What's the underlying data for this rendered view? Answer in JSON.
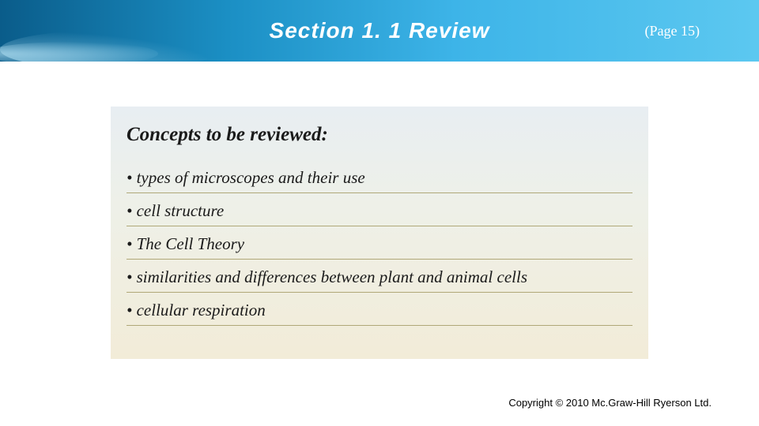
{
  "header": {
    "title": "Section 1. 1  Review",
    "title_fontsize": 28,
    "page_label": "(Page 15)",
    "page_fontsize": 18,
    "gradient_colors": [
      "#0a5c8a",
      "#1b8fc4",
      "#3db4e8",
      "#5cc8f0"
    ]
  },
  "content": {
    "subtitle": "Concepts to be reviewed:",
    "subtitle_fontsize": 25,
    "bullets": [
      "types of microscopes and their use",
      "cell structure",
      "The Cell Theory",
      "similarities and differences between plant and animal cells",
      "cellular respiration"
    ],
    "bullet_fontsize": 21,
    "underline_color": "#b0a878",
    "box_gradient": [
      "#e8eef2",
      "#eef0e8",
      "#f2ecd8"
    ]
  },
  "footer": {
    "copyright": "Copyright © 2010 Mc.Graw-Hill Ryerson Ltd.",
    "fontsize": 13
  }
}
